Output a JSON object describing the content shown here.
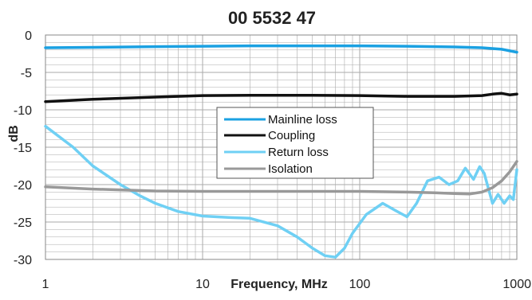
{
  "chart_data": {
    "type": "line",
    "title": "00 5532 47",
    "xlabel": "Frequency, MHz",
    "ylabel": "dB",
    "x_scale": "log",
    "xlim": [
      1,
      1000
    ],
    "ylim": [
      -30,
      0
    ],
    "x_ticks": [
      {
        "value": 1,
        "label": "1"
      },
      {
        "value": 10,
        "label": "10"
      },
      {
        "value": 100,
        "label": "100"
      },
      {
        "value": 1000,
        "label": "1000"
      }
    ],
    "y_ticks": [
      {
        "value": 0,
        "label": "0"
      },
      {
        "value": -5,
        "label": "-5"
      },
      {
        "value": -10,
        "label": "-10"
      },
      {
        "value": -15,
        "label": "-15"
      },
      {
        "value": -20,
        "label": "-20"
      },
      {
        "value": -25,
        "label": "-25"
      },
      {
        "value": -30,
        "label": "-30"
      }
    ],
    "grid": true,
    "legend_position": "center",
    "series": [
      {
        "name": "Mainline loss",
        "color": "#1ba1e2",
        "points": [
          [
            1,
            -1.7
          ],
          [
            2,
            -1.65
          ],
          [
            5,
            -1.55
          ],
          [
            10,
            -1.5
          ],
          [
            20,
            -1.45
          ],
          [
            50,
            -1.45
          ],
          [
            100,
            -1.45
          ],
          [
            200,
            -1.5
          ],
          [
            400,
            -1.6
          ],
          [
            600,
            -1.7
          ],
          [
            800,
            -1.9
          ],
          [
            1000,
            -2.3
          ]
        ]
      },
      {
        "name": "Coupling",
        "color": "#111111",
        "points": [
          [
            1,
            -8.9
          ],
          [
            2,
            -8.6
          ],
          [
            5,
            -8.3
          ],
          [
            10,
            -8.1
          ],
          [
            20,
            -8.05
          ],
          [
            50,
            -8.05
          ],
          [
            100,
            -8.1
          ],
          [
            200,
            -8.2
          ],
          [
            400,
            -8.2
          ],
          [
            600,
            -8.1
          ],
          [
            700,
            -7.9
          ],
          [
            800,
            -7.8
          ],
          [
            900,
            -8.0
          ],
          [
            1000,
            -7.9
          ]
        ]
      },
      {
        "name": "Return loss",
        "color": "#6fd0f4",
        "points": [
          [
            1,
            -12.2
          ],
          [
            1.5,
            -15.0
          ],
          [
            2,
            -17.5
          ],
          [
            3,
            -20.0
          ],
          [
            4,
            -21.5
          ],
          [
            5,
            -22.5
          ],
          [
            7,
            -23.6
          ],
          [
            10,
            -24.2
          ],
          [
            15,
            -24.4
          ],
          [
            20,
            -24.5
          ],
          [
            30,
            -25.5
          ],
          [
            40,
            -27.0
          ],
          [
            50,
            -28.5
          ],
          [
            60,
            -29.5
          ],
          [
            70,
            -29.7
          ],
          [
            80,
            -28.5
          ],
          [
            90,
            -26.5
          ],
          [
            110,
            -24.0
          ],
          [
            140,
            -22.5
          ],
          [
            170,
            -23.5
          ],
          [
            200,
            -24.3
          ],
          [
            230,
            -22.5
          ],
          [
            270,
            -19.5
          ],
          [
            320,
            -19.0
          ],
          [
            370,
            -20.0
          ],
          [
            420,
            -19.5
          ],
          [
            470,
            -17.8
          ],
          [
            530,
            -19.3
          ],
          [
            580,
            -17.6
          ],
          [
            620,
            -18.5
          ],
          [
            700,
            -22.5
          ],
          [
            760,
            -21.3
          ],
          [
            830,
            -22.5
          ],
          [
            900,
            -21.5
          ],
          [
            950,
            -22.0
          ],
          [
            1000,
            -18.0
          ]
        ]
      },
      {
        "name": "Isolation",
        "color": "#999999",
        "points": [
          [
            1,
            -20.3
          ],
          [
            2,
            -20.6
          ],
          [
            5,
            -20.85
          ],
          [
            10,
            -20.9
          ],
          [
            20,
            -20.9
          ],
          [
            50,
            -20.9
          ],
          [
            100,
            -20.9
          ],
          [
            200,
            -21.0
          ],
          [
            300,
            -21.1
          ],
          [
            400,
            -21.2
          ],
          [
            500,
            -21.25
          ],
          [
            600,
            -21.0
          ],
          [
            700,
            -20.4
          ],
          [
            800,
            -19.5
          ],
          [
            900,
            -18.3
          ],
          [
            1000,
            -16.9
          ]
        ]
      }
    ]
  }
}
